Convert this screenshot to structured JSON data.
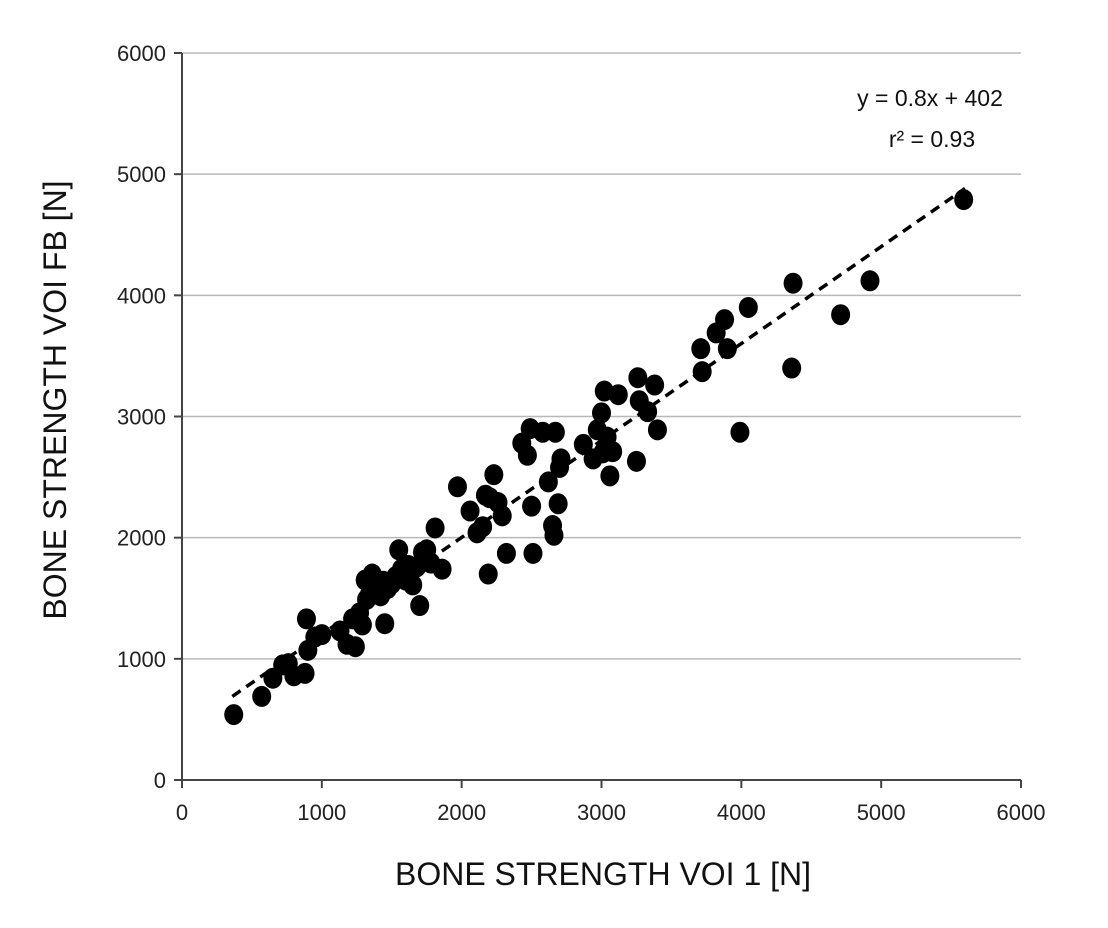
{
  "chart_data": {
    "type": "scatter",
    "xlabel": "BONE STRENGTH VOI 1 [N]",
    "ylabel": "BONE STRENGTH VOI FB [N]",
    "xlim": [
      0,
      6000
    ],
    "ylim": [
      0,
      6000
    ],
    "xticks": [
      0,
      1000,
      2000,
      3000,
      4000,
      5000,
      6000
    ],
    "yticks": [
      0,
      1000,
      2000,
      3000,
      4000,
      5000,
      6000
    ],
    "grid": "horizontal",
    "trendline": {
      "slope": 0.8,
      "intercept": 402,
      "x_range": [
        360,
        5600
      ],
      "style": "dashed"
    },
    "annotations": {
      "equation": "y = 0.8x + 402",
      "r_squared": "r² = 0.93"
    },
    "marker_color": "#000000",
    "points": [
      [
        370,
        540
      ],
      [
        570,
        690
      ],
      [
        650,
        840
      ],
      [
        720,
        950
      ],
      [
        760,
        960
      ],
      [
        800,
        860
      ],
      [
        880,
        880
      ],
      [
        890,
        1330
      ],
      [
        900,
        1070
      ],
      [
        950,
        1180
      ],
      [
        1000,
        1200
      ],
      [
        1130,
        1230
      ],
      [
        1180,
        1120
      ],
      [
        1220,
        1330
      ],
      [
        1240,
        1100
      ],
      [
        1270,
        1380
      ],
      [
        1290,
        1280
      ],
      [
        1310,
        1650
      ],
      [
        1320,
        1490
      ],
      [
        1340,
        1530
      ],
      [
        1360,
        1700
      ],
      [
        1380,
        1620
      ],
      [
        1400,
        1560
      ],
      [
        1420,
        1520
      ],
      [
        1440,
        1640
      ],
      [
        1450,
        1290
      ],
      [
        1470,
        1580
      ],
      [
        1500,
        1620
      ],
      [
        1530,
        1680
      ],
      [
        1550,
        1900
      ],
      [
        1570,
        1740
      ],
      [
        1600,
        1650
      ],
      [
        1620,
        1770
      ],
      [
        1650,
        1610
      ],
      [
        1680,
        1760
      ],
      [
        1700,
        1440
      ],
      [
        1720,
        1880
      ],
      [
        1750,
        1900
      ],
      [
        1780,
        1790
      ],
      [
        1810,
        2080
      ],
      [
        1860,
        1740
      ],
      [
        1970,
        2420
      ],
      [
        2060,
        2220
      ],
      [
        2110,
        2040
      ],
      [
        2150,
        2090
      ],
      [
        2170,
        2350
      ],
      [
        2190,
        1700
      ],
      [
        2200,
        2330
      ],
      [
        2230,
        2520
      ],
      [
        2260,
        2290
      ],
      [
        2290,
        2180
      ],
      [
        2320,
        1870
      ],
      [
        2430,
        2780
      ],
      [
        2470,
        2680
      ],
      [
        2490,
        2900
      ],
      [
        2500,
        2260
      ],
      [
        2510,
        1870
      ],
      [
        2580,
        2870
      ],
      [
        2620,
        2460
      ],
      [
        2650,
        2100
      ],
      [
        2660,
        2020
      ],
      [
        2670,
        2870
      ],
      [
        2690,
        2280
      ],
      [
        2700,
        2580
      ],
      [
        2710,
        2650
      ],
      [
        2870,
        2770
      ],
      [
        2940,
        2650
      ],
      [
        2970,
        2890
      ],
      [
        3000,
        3030
      ],
      [
        3010,
        2700
      ],
      [
        3020,
        3210
      ],
      [
        3040,
        2830
      ],
      [
        3060,
        2510
      ],
      [
        3080,
        2710
      ],
      [
        3120,
        3180
      ],
      [
        3250,
        2630
      ],
      [
        3260,
        3320
      ],
      [
        3270,
        3130
      ],
      [
        3330,
        3040
      ],
      [
        3380,
        3260
      ],
      [
        3400,
        2890
      ],
      [
        3710,
        3560
      ],
      [
        3720,
        3370
      ],
      [
        3820,
        3690
      ],
      [
        3880,
        3800
      ],
      [
        3900,
        3560
      ],
      [
        3990,
        2870
      ],
      [
        4050,
        3900
      ],
      [
        4360,
        3400
      ],
      [
        4370,
        4100
      ],
      [
        4710,
        3840
      ],
      [
        4920,
        4120
      ],
      [
        5590,
        4790
      ]
    ]
  }
}
